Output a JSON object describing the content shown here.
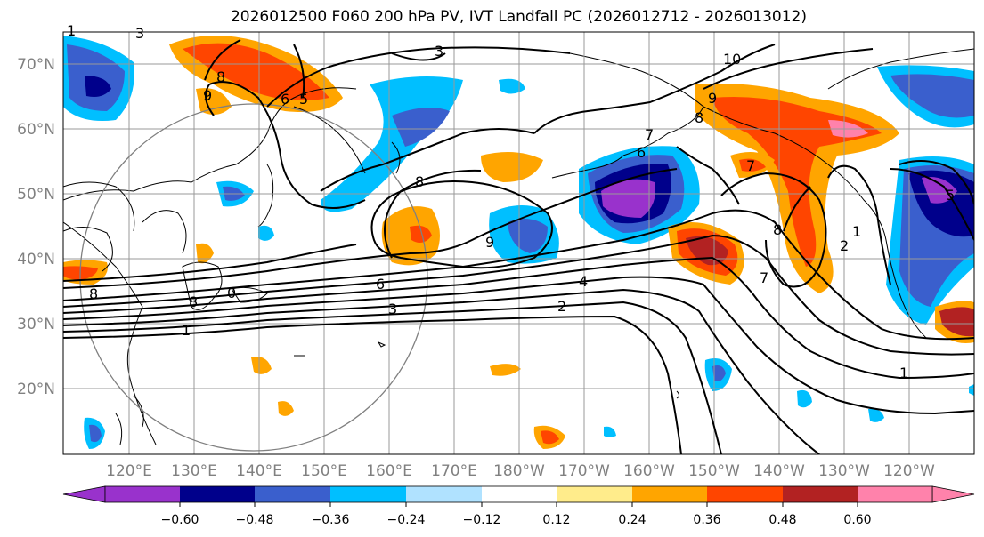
{
  "title": "2026012500 F060 200 hPa PV, IVT Landfall PC (2026012712 - 2026013012)",
  "lat_labels": [
    "70°N",
    "60°N",
    "50°N",
    "40°N",
    "30°N",
    "20°N"
  ],
  "lon_labels": [
    "120°E",
    "130°E",
    "140°E",
    "150°E",
    "160°E",
    "170°E",
    "180°W",
    "170°W",
    "160°W",
    "150°W",
    "140°W",
    "130°W",
    "120°W"
  ],
  "colorbar": {
    "colors": [
      "#9932cc",
      "#00008b",
      "#3a5fcd",
      "#00bfff",
      "#b0e2ff",
      "#ffffff",
      "#ffec8b",
      "#ffa500",
      "#ff4500",
      "#b22222",
      "#ff82ab"
    ],
    "tick_labels": [
      "−0.60",
      "−0.48",
      "−0.36",
      "−0.24",
      "−0.12",
      "0.12",
      "0.24",
      "0.36",
      "0.48",
      "0.60"
    ]
  },
  "contour_labels": [
    "3",
    "10",
    "9",
    "8",
    "6",
    "5",
    "9",
    "8",
    "7",
    "6",
    "8",
    "9",
    "7",
    "6",
    "4",
    "3",
    "2",
    "1",
    "8",
    "8",
    "7",
    "2",
    "1",
    "1",
    "5",
    "1",
    "8",
    "0",
    "3"
  ]
}
